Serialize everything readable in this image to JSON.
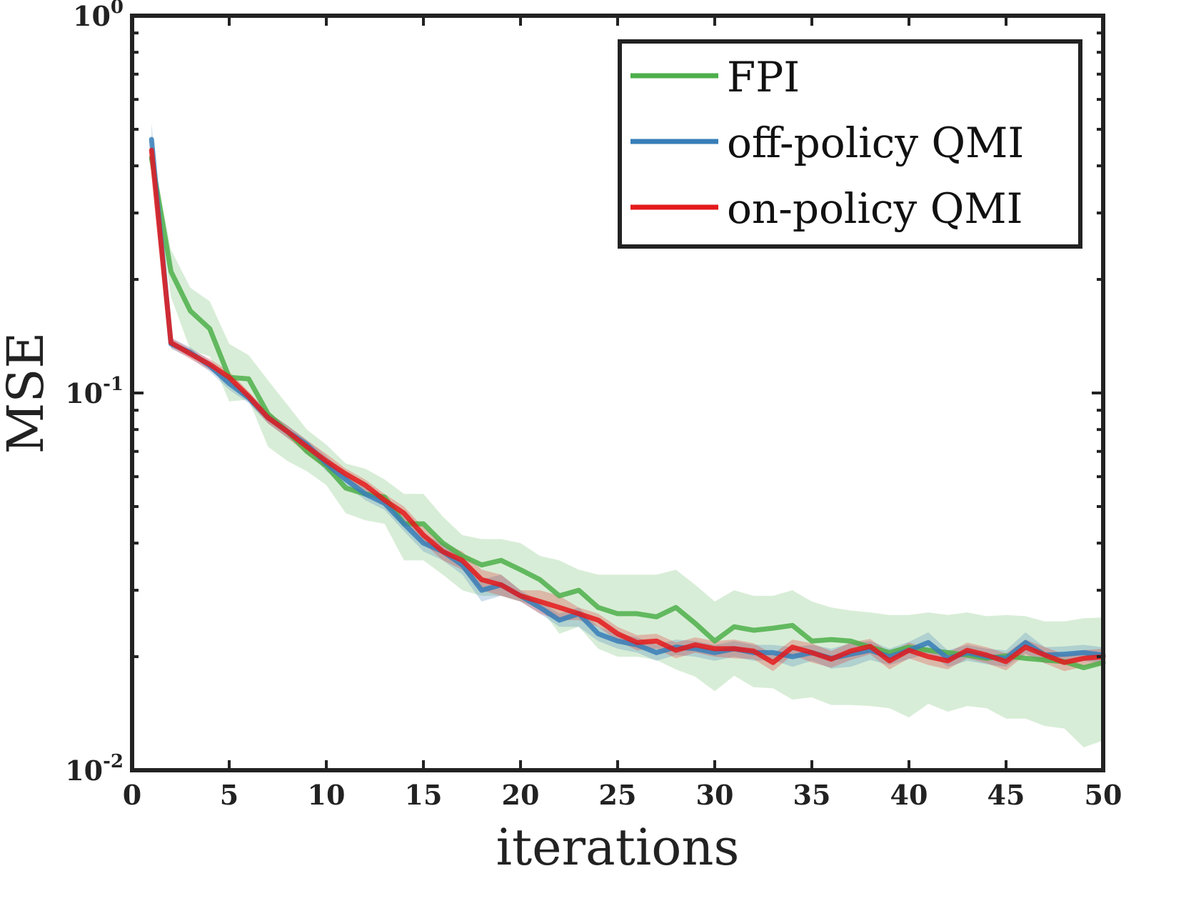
{
  "chart_data": {
    "type": "line",
    "title": "",
    "xlabel": "iterations",
    "ylabel": "MSE",
    "xlim": [
      0,
      50
    ],
    "ylim": [
      0.01,
      1
    ],
    "yscale": "log",
    "grid": false,
    "legend_position": "top-right",
    "x_ticks": [
      "0",
      "5",
      "10",
      "15",
      "20",
      "25",
      "30",
      "35",
      "40",
      "45",
      "50"
    ],
    "y_ticks": [
      {
        "base": "10",
        "exp": "0"
      },
      {
        "base": "10",
        "exp": "-1"
      },
      {
        "base": "10",
        "exp": "-2"
      }
    ],
    "x": [
      1,
      2,
      3,
      4,
      5,
      6,
      7,
      8,
      9,
      10,
      11,
      12,
      13,
      14,
      15,
      16,
      17,
      18,
      19,
      20,
      21,
      22,
      23,
      24,
      25,
      26,
      27,
      28,
      29,
      30,
      31,
      32,
      33,
      34,
      35,
      36,
      37,
      38,
      39,
      40,
      41,
      42,
      43,
      44,
      45,
      46,
      47,
      48,
      49,
      50
    ],
    "series": [
      {
        "name": "FPI",
        "color": "#4daf4a",
        "values": [
          0.42,
          0.21,
          0.165,
          0.148,
          0.11,
          0.109,
          0.088,
          0.079,
          0.07,
          0.064,
          0.056,
          0.054,
          0.053,
          0.045,
          0.045,
          0.04,
          0.037,
          0.035,
          0.036,
          0.034,
          0.032,
          0.029,
          0.03,
          0.027,
          0.026,
          0.026,
          0.0255,
          0.027,
          0.0245,
          0.022,
          0.024,
          0.0235,
          0.0238,
          0.0242,
          0.022,
          0.0222,
          0.022,
          0.0212,
          0.0205,
          0.0212,
          0.0208,
          0.0205,
          0.0202,
          0.0198,
          0.0201,
          0.0198,
          0.0196,
          0.0194,
          0.0187,
          0.0193
        ],
        "band_lower": [
          0.4,
          0.18,
          0.13,
          0.125,
          0.095,
          0.096,
          0.072,
          0.066,
          0.062,
          0.057,
          0.048,
          0.046,
          0.045,
          0.036,
          0.036,
          0.033,
          0.03,
          0.029,
          0.029,
          0.028,
          0.027,
          0.023,
          0.024,
          0.021,
          0.02,
          0.02,
          0.0196,
          0.0185,
          0.0177,
          0.0162,
          0.0178,
          0.0166,
          0.0165,
          0.0154,
          0.0156,
          0.0149,
          0.0149,
          0.0148,
          0.0146,
          0.0138,
          0.015,
          0.0143,
          0.0148,
          0.0146,
          0.0137,
          0.0137,
          0.0131,
          0.0129,
          0.0115,
          0.012
        ],
        "band_upper": [
          0.44,
          0.24,
          0.19,
          0.175,
          0.135,
          0.126,
          0.108,
          0.093,
          0.08,
          0.073,
          0.065,
          0.063,
          0.059,
          0.054,
          0.054,
          0.047,
          0.042,
          0.041,
          0.041,
          0.04,
          0.037,
          0.036,
          0.034,
          0.033,
          0.033,
          0.033,
          0.033,
          0.034,
          0.031,
          0.028,
          0.03,
          0.029,
          0.029,
          0.03,
          0.028,
          0.027,
          0.0265,
          0.0262,
          0.0258,
          0.0258,
          0.0262,
          0.0258,
          0.0262,
          0.0256,
          0.0258,
          0.0256,
          0.0248,
          0.0248,
          0.0253,
          0.0254
        ]
      },
      {
        "name": "off-policy QMI",
        "color": "#377eb8",
        "values": [
          0.47,
          0.135,
          0.128,
          0.118,
          0.106,
          0.097,
          0.086,
          0.079,
          0.073,
          0.065,
          0.059,
          0.054,
          0.051,
          0.045,
          0.04,
          0.038,
          0.035,
          0.03,
          0.031,
          0.029,
          0.027,
          0.025,
          0.026,
          0.023,
          0.022,
          0.0215,
          0.0205,
          0.0212,
          0.021,
          0.0205,
          0.021,
          0.0205,
          0.0205,
          0.02,
          0.0205,
          0.0198,
          0.0203,
          0.0208,
          0.02,
          0.0208,
          0.0218,
          0.0198,
          0.0205,
          0.02,
          0.0198,
          0.0218,
          0.0202,
          0.0203,
          0.0205,
          0.0202
        ],
        "band_lower": [
          0.45,
          0.131,
          0.124,
          0.114,
          0.102,
          0.094,
          0.083,
          0.076,
          0.071,
          0.062,
          0.057,
          0.052,
          0.049,
          0.043,
          0.038,
          0.036,
          0.033,
          0.028,
          0.029,
          0.028,
          0.026,
          0.024,
          0.024,
          0.022,
          0.021,
          0.0205,
          0.0195,
          0.0202,
          0.02,
          0.0195,
          0.02,
          0.0195,
          0.0196,
          0.0188,
          0.0195,
          0.0186,
          0.0188,
          0.0196,
          0.019,
          0.0197,
          0.0204,
          0.0188,
          0.0195,
          0.0191,
          0.0188,
          0.0204,
          0.0192,
          0.0194,
          0.0195,
          0.0192
        ],
        "band_upper": [
          0.52,
          0.14,
          0.132,
          0.122,
          0.11,
          0.1,
          0.089,
          0.082,
          0.075,
          0.068,
          0.061,
          0.056,
          0.053,
          0.047,
          0.042,
          0.04,
          0.037,
          0.032,
          0.033,
          0.03,
          0.028,
          0.026,
          0.027,
          0.024,
          0.023,
          0.0225,
          0.0215,
          0.0222,
          0.022,
          0.0215,
          0.022,
          0.0215,
          0.0215,
          0.0212,
          0.0215,
          0.021,
          0.0217,
          0.022,
          0.021,
          0.0219,
          0.0232,
          0.0208,
          0.0215,
          0.021,
          0.0208,
          0.0232,
          0.0212,
          0.0213,
          0.0215,
          0.0212
        ]
      },
      {
        "name": "on-policy QMI",
        "color": "#e41a1c",
        "values": [
          0.44,
          0.136,
          0.127,
          0.119,
          0.11,
          0.098,
          0.086,
          0.079,
          0.072,
          0.066,
          0.061,
          0.057,
          0.052,
          0.048,
          0.042,
          0.038,
          0.036,
          0.032,
          0.031,
          0.029,
          0.028,
          0.027,
          0.026,
          0.025,
          0.023,
          0.0218,
          0.022,
          0.0208,
          0.0215,
          0.021,
          0.021,
          0.0207,
          0.0193,
          0.0212,
          0.0205,
          0.0197,
          0.0207,
          0.0213,
          0.0195,
          0.0208,
          0.02,
          0.0195,
          0.0208,
          0.0202,
          0.0194,
          0.0212,
          0.0202,
          0.0193,
          0.0198,
          0.02
        ],
        "band_lower": [
          0.42,
          0.132,
          0.123,
          0.115,
          0.106,
          0.095,
          0.083,
          0.076,
          0.069,
          0.063,
          0.059,
          0.055,
          0.05,
          0.046,
          0.04,
          0.036,
          0.034,
          0.03,
          0.029,
          0.028,
          0.026,
          0.025,
          0.025,
          0.024,
          0.022,
          0.0208,
          0.021,
          0.0198,
          0.0205,
          0.02,
          0.0198,
          0.0197,
          0.0183,
          0.0202,
          0.0193,
          0.0187,
          0.0196,
          0.0203,
          0.0185,
          0.0198,
          0.019,
          0.0185,
          0.0198,
          0.0192,
          0.0184,
          0.0202,
          0.0192,
          0.0183,
          0.0188,
          0.019
        ],
        "band_upper": [
          0.46,
          0.14,
          0.131,
          0.123,
          0.114,
          0.101,
          0.089,
          0.082,
          0.075,
          0.069,
          0.063,
          0.059,
          0.054,
          0.05,
          0.044,
          0.04,
          0.038,
          0.034,
          0.033,
          0.03,
          0.03,
          0.029,
          0.027,
          0.026,
          0.024,
          0.0228,
          0.023,
          0.0218,
          0.0225,
          0.022,
          0.0222,
          0.0217,
          0.0203,
          0.0222,
          0.0217,
          0.0207,
          0.0218,
          0.0223,
          0.0205,
          0.0218,
          0.021,
          0.0205,
          0.0218,
          0.0212,
          0.0204,
          0.0222,
          0.0212,
          0.0203,
          0.0208,
          0.021
        ]
      }
    ]
  }
}
